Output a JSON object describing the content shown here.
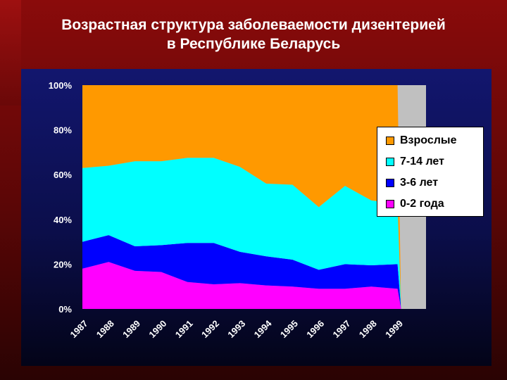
{
  "title": "Возрастная структура заболеваемости дизентерией\nв Республике Беларусь",
  "chart_data": {
    "type": "area",
    "stacked": true,
    "percent": true,
    "categories": [
      "1987",
      "1988",
      "1989",
      "1990",
      "1991",
      "1992",
      "1993",
      "1994",
      "1995",
      "1996",
      "1997",
      "1998",
      "1999"
    ],
    "y_ticks": [
      "0%",
      "20%",
      "40%",
      "60%",
      "80%",
      "100%"
    ],
    "ylim": [
      0,
      100
    ],
    "legend_position": "right",
    "series": [
      {
        "name": "0-2 года",
        "color": "#ff00ff",
        "values": [
          18,
          21,
          17,
          16.5,
          12,
          11,
          11.5,
          10.5,
          10,
          9,
          9,
          10,
          9
        ]
      },
      {
        "name": "3-6 лет",
        "color": "#0000ff",
        "values": [
          12,
          12,
          11,
          12,
          17.5,
          18.5,
          14,
          13,
          12,
          8.5,
          11,
          9.5,
          11
        ]
      },
      {
        "name": "7-14 лет",
        "color": "#00ffff",
        "values": [
          33,
          31,
          38,
          37.5,
          38,
          38,
          38,
          32.5,
          33.5,
          28,
          35,
          29,
          27
        ]
      },
      {
        "name": "Взрослые",
        "color": "#ff9900",
        "values": [
          37,
          36,
          34,
          34,
          32.5,
          32.5,
          36.5,
          44,
          44.5,
          54.5,
          45,
          51.5,
          53
        ]
      }
    ],
    "trailing_gray_color": "#c0c0c0"
  }
}
